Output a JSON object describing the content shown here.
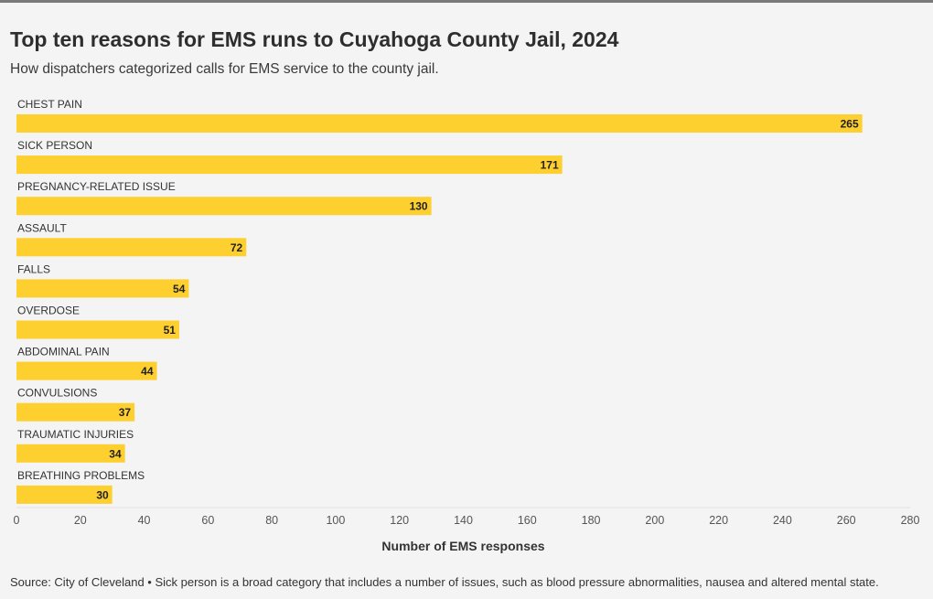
{
  "title": "Top ten reasons for EMS runs to Cuyahoga County Jail, 2024",
  "subtitle": "How dispatchers categorized calls for EMS service to the county jail.",
  "source": "Source: City of Cleveland • Sick person is a broad category that includes a number of issues, such as blood pressure abnormalities, nausea and altered mental state.",
  "colors": {
    "bar": "#fdcf2f",
    "background": "#f4f4f4"
  },
  "chart_data": {
    "type": "bar",
    "orientation": "horizontal",
    "categories": [
      "CHEST PAIN",
      "SICK PERSON",
      "PREGNANCY-RELATED ISSUE",
      "ASSAULT",
      "FALLS",
      "OVERDOSE",
      "ABDOMINAL PAIN",
      "CONVULSIONS",
      "TRAUMATIC INJURIES",
      "BREATHING PROBLEMS"
    ],
    "values": [
      265,
      171,
      130,
      72,
      54,
      51,
      44,
      37,
      34,
      30
    ],
    "xlabel": "Number of EMS responses",
    "ylabel": "",
    "xlim": [
      0,
      280
    ],
    "xticks": [
      0,
      20,
      40,
      60,
      80,
      100,
      120,
      140,
      160,
      180,
      200,
      220,
      240,
      260,
      280
    ],
    "data_labels": true,
    "grid": false
  }
}
